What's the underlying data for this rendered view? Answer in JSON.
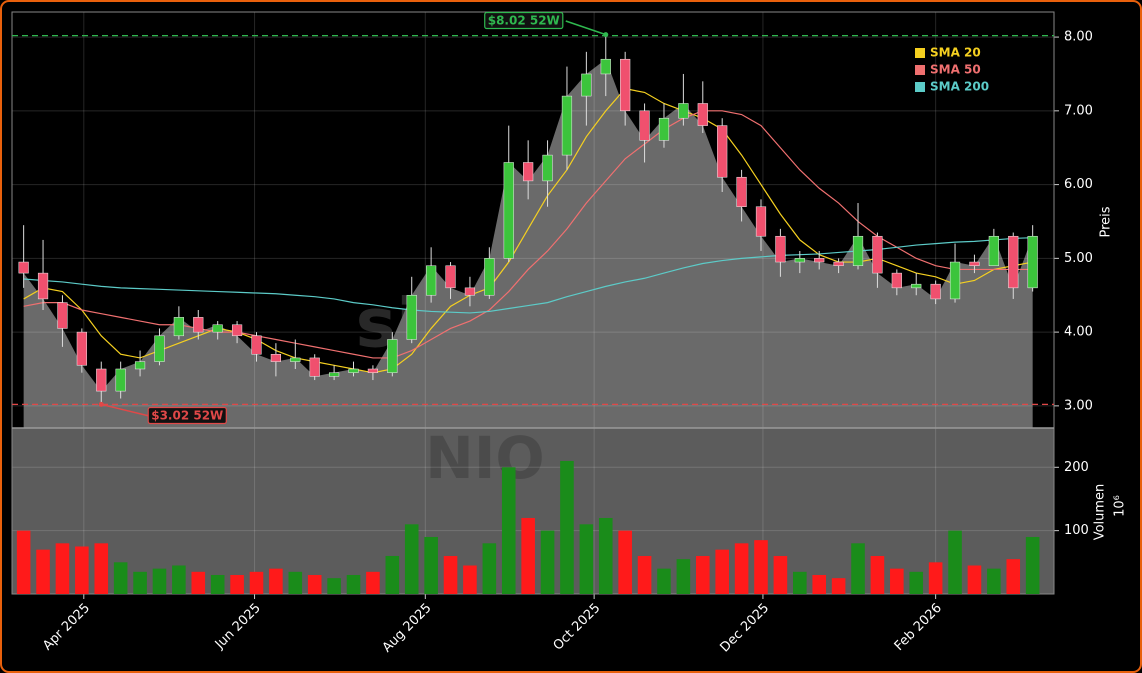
{
  "chart_data": {
    "type": "candlestick",
    "watermark": "signale.trade",
    "ticker": "NIO",
    "y_label": "Preis",
    "volume_label": "Volumen",
    "volume_unit": "10⁶",
    "up_color": "#3cc43c",
    "down_color": "#f0506e",
    "volume_up_color": "#1a8c1a",
    "volume_down_color": "#ff1a1a",
    "grid": true,
    "legend_position": "upper right",
    "ylim": [
      2.7,
      8.34
    ],
    "yticks": [
      {
        "value": 3,
        "label": "3.00"
      },
      {
        "value": 4,
        "label": "4.00"
      },
      {
        "value": 5,
        "label": "5.00"
      },
      {
        "value": 6,
        "label": "6.00"
      },
      {
        "value": 7,
        "label": "7.00"
      },
      {
        "value": 8,
        "label": "8.00"
      }
    ],
    "xlim": [
      -0.6,
      53.1
    ],
    "xticks": [
      {
        "value": 3.1,
        "label": "Apr 2025"
      },
      {
        "value": 11.9,
        "label": "Jun 2025"
      },
      {
        "value": 20.7,
        "label": "Aug 2025"
      },
      {
        "value": 29.4,
        "label": "Oct 2025"
      },
      {
        "value": 38.1,
        "label": "Dec 2025"
      },
      {
        "value": 47,
        "label": "Feb 2026"
      }
    ],
    "high_52w": {
      "value": 8.02,
      "label": "$8.02 52W",
      "color": "#2fb84f"
    },
    "low_52w": {
      "value": 3.02,
      "label": "$3.02 52W",
      "color": "#e04848"
    },
    "ohlc": {
      "open": [
        4.95,
        4.8,
        4.4,
        4.0,
        3.5,
        3.2,
        3.5,
        3.6,
        3.95,
        4.2,
        4.0,
        4.1,
        3.95,
        3.7,
        3.6,
        3.65,
        3.4,
        3.45,
        3.5,
        3.45,
        3.9,
        4.5,
        4.9,
        4.6,
        4.5,
        5.0,
        6.3,
        6.05,
        6.4,
        7.2,
        7.5,
        7.7,
        7.0,
        6.6,
        6.9,
        7.1,
        6.8,
        6.1,
        5.7,
        5.3,
        4.95,
        5.0,
        4.95,
        4.9,
        5.3,
        4.8,
        4.6,
        4.65,
        4.45,
        4.95,
        4.9,
        5.3,
        4.6
      ],
      "high": [
        5.45,
        5.25,
        4.5,
        4.05,
        3.6,
        3.6,
        3.75,
        4.05,
        4.35,
        4.3,
        4.15,
        4.15,
        4.0,
        3.85,
        3.9,
        3.7,
        3.55,
        3.6,
        3.55,
        4.0,
        4.75,
        5.15,
        4.95,
        4.75,
        5.15,
        6.8,
        6.6,
        6.6,
        7.6,
        7.8,
        8.02,
        7.8,
        7.1,
        7.1,
        7.5,
        7.4,
        6.9,
        6.2,
        5.8,
        5.4,
        5.1,
        5.1,
        5.0,
        5.75,
        5.35,
        4.85,
        4.8,
        4.7,
        5.2,
        5.05,
        5.4,
        5.35,
        5.45
      ],
      "low": [
        4.6,
        4.3,
        3.8,
        3.45,
        3.02,
        3.1,
        3.4,
        3.55,
        3.9,
        3.9,
        3.9,
        3.85,
        3.6,
        3.4,
        3.5,
        3.35,
        3.35,
        3.4,
        3.35,
        3.4,
        3.85,
        4.4,
        4.45,
        4.35,
        4.45,
        4.95,
        5.8,
        5.7,
        6.2,
        6.8,
        7.2,
        6.8,
        6.3,
        6.5,
        6.8,
        6.7,
        5.9,
        5.5,
        5.1,
        4.75,
        4.8,
        4.85,
        4.8,
        4.85,
        4.6,
        4.5,
        4.5,
        4.38,
        4.4,
        4.8,
        4.9,
        4.45,
        4.55
      ],
      "close": [
        4.8,
        4.45,
        4.05,
        3.55,
        3.2,
        3.5,
        3.6,
        3.95,
        4.2,
        4.0,
        4.1,
        3.95,
        3.7,
        3.6,
        3.65,
        3.4,
        3.45,
        3.5,
        3.45,
        3.9,
        4.5,
        4.9,
        4.6,
        4.5,
        5.0,
        6.3,
        6.05,
        6.4,
        7.2,
        7.5,
        7.7,
        7.0,
        6.6,
        6.9,
        7.1,
        6.8,
        6.1,
        5.7,
        5.3,
        4.95,
        5.0,
        4.95,
        4.9,
        5.3,
        4.8,
        4.6,
        4.65,
        4.45,
        4.95,
        4.9,
        5.3,
        4.6,
        5.3
      ]
    },
    "series": [
      {
        "name": "SMA 20",
        "color": "#f5d020",
        "values": [
          4.45,
          4.6,
          4.55,
          4.3,
          3.95,
          3.7,
          3.65,
          3.75,
          3.85,
          3.95,
          4.05,
          4.0,
          3.9,
          3.75,
          3.65,
          3.6,
          3.55,
          3.5,
          3.45,
          3.5,
          3.7,
          4.05,
          4.35,
          4.5,
          4.6,
          4.95,
          5.4,
          5.85,
          6.2,
          6.65,
          7.0,
          7.3,
          7.25,
          7.1,
          7.0,
          6.9,
          6.75,
          6.4,
          6.0,
          5.6,
          5.25,
          5.05,
          4.95,
          4.95,
          5.0,
          4.9,
          4.8,
          4.75,
          4.65,
          4.7,
          4.85,
          4.9,
          4.95
        ]
      },
      {
        "name": "SMA 50",
        "color": "#f07070",
        "values": [
          4.35,
          4.4,
          4.4,
          4.3,
          4.25,
          4.2,
          4.15,
          4.1,
          4.1,
          4.05,
          4.0,
          4.0,
          3.95,
          3.9,
          3.85,
          3.8,
          3.75,
          3.7,
          3.65,
          3.65,
          3.75,
          3.9,
          4.05,
          4.15,
          4.3,
          4.55,
          4.85,
          5.1,
          5.4,
          5.75,
          6.05,
          6.35,
          6.55,
          6.75,
          6.9,
          7.0,
          7.0,
          6.95,
          6.8,
          6.5,
          6.2,
          5.95,
          5.75,
          5.5,
          5.3,
          5.15,
          5.0,
          4.9,
          4.85,
          4.85,
          4.85,
          4.85,
          4.85
        ]
      },
      {
        "name": "SMA 200",
        "color": "#5ccbc8",
        "values": [
          4.72,
          4.7,
          4.68,
          4.65,
          4.62,
          4.6,
          4.59,
          4.58,
          4.57,
          4.56,
          4.55,
          4.54,
          4.53,
          4.52,
          4.5,
          4.48,
          4.45,
          4.4,
          4.37,
          4.33,
          4.3,
          4.28,
          4.27,
          4.26,
          4.28,
          4.32,
          4.36,
          4.4,
          4.48,
          4.55,
          4.62,
          4.68,
          4.73,
          4.8,
          4.87,
          4.93,
          4.97,
          5.0,
          5.02,
          5.04,
          5.05,
          5.06,
          5.08,
          5.1,
          5.12,
          5.15,
          5.18,
          5.2,
          5.22,
          5.23,
          5.25,
          5.27,
          5.28
        ]
      }
    ],
    "volume": {
      "ylim": [
        0,
        262
      ],
      "yticks": [
        100,
        200
      ],
      "values": [
        100,
        70,
        80,
        75,
        80,
        50,
        35,
        40,
        45,
        35,
        30,
        30,
        35,
        40,
        35,
        30,
        25,
        30,
        35,
        60,
        110,
        90,
        60,
        45,
        80,
        200,
        120,
        100,
        210,
        110,
        120,
        100,
        60,
        40,
        55,
        60,
        70,
        80,
        85,
        60,
        35,
        30,
        25,
        80,
        60,
        40,
        35,
        50,
        100,
        45,
        40,
        55,
        90
      ]
    }
  }
}
